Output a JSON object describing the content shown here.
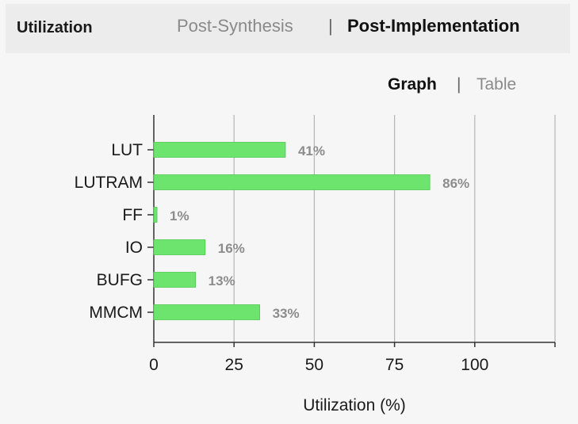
{
  "header": {
    "title": "Utilization",
    "tabs": [
      {
        "label": "Post-Synthesis",
        "active": false
      },
      {
        "label": "Post-Implementation",
        "active": true
      }
    ],
    "separator": "|"
  },
  "view_toggle": {
    "options": [
      {
        "label": "Graph",
        "active": true
      },
      {
        "label": "Table",
        "active": false
      }
    ],
    "separator": "|"
  },
  "colors": {
    "bar": "#6de46d",
    "bar_edge": "#4fc94f",
    "value_label": "#8c8c8c",
    "grid": "#b5b5b5",
    "axis": "#333333"
  },
  "chart_data": {
    "type": "bar",
    "orientation": "horizontal",
    "categories": [
      "LUT",
      "LUTRAM",
      "FF",
      "IO",
      "BUFG",
      "MMCM"
    ],
    "values": [
      41,
      86,
      1,
      16,
      13,
      33
    ],
    "value_labels": [
      "41%",
      "86%",
      "1%",
      "16%",
      "13%",
      "33%"
    ],
    "xlabel": "Utilization (%)",
    "xlim": [
      0,
      125
    ],
    "xticks": [
      0,
      25,
      50,
      75,
      100
    ],
    "grid": true
  }
}
